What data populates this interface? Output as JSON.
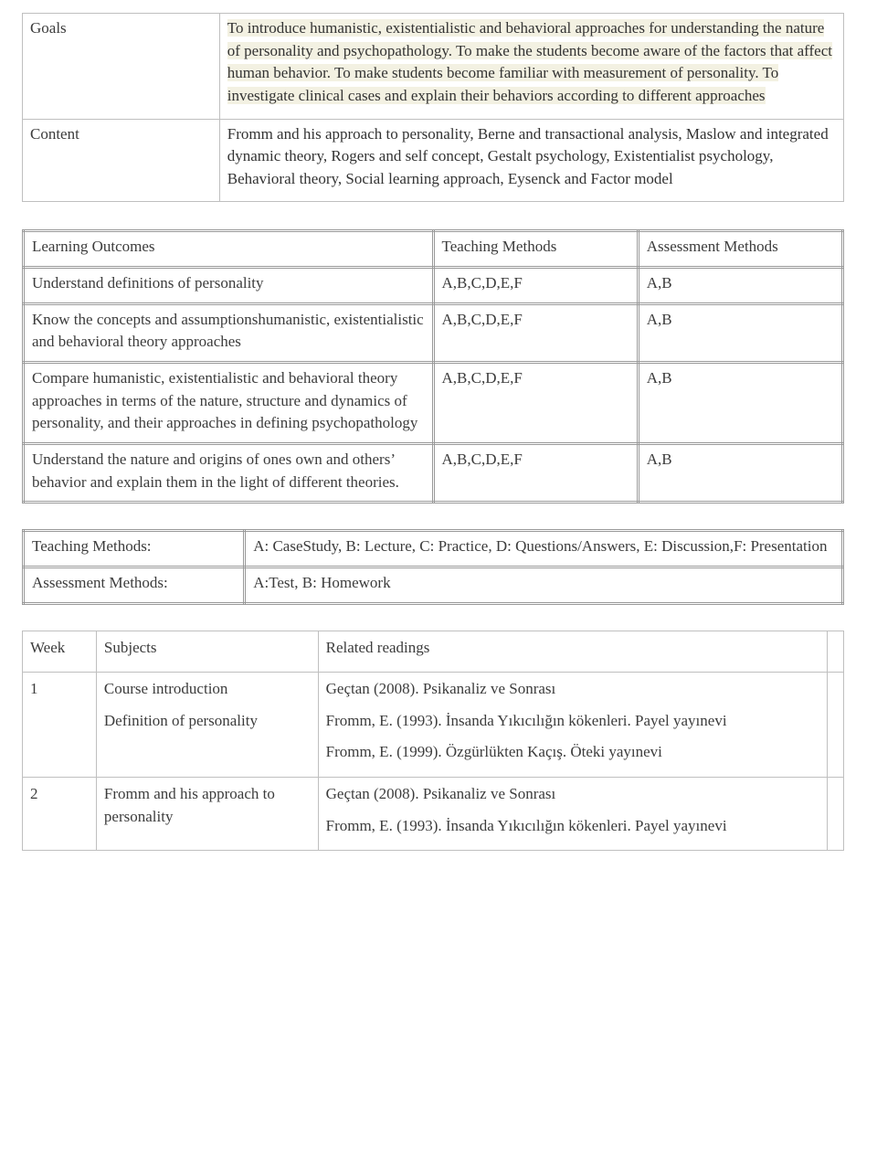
{
  "goalsContent": {
    "label": "Goals",
    "label_color": "#3c3c3c",
    "text_color": "#3c3c3c",
    "highlight_bg": "#f3f1e2",
    "text": "To introduce humanistic, existentialistic and behavioral approaches for understanding  the nature of personality and psychopathology. To make the students become aware of the factors that affect human behavior. To make students become familiar with measurement of personality. To investigate clinical cases and explain their behaviors according to different approaches"
  },
  "contentRow": {
    "label": "Content",
    "text": "Fromm and his approach to personality, Berne and transactional analysis, Maslow and integrated dynamic theory, Rogers and self concept, Gestalt psychology, Existentialist psychology, Behavioral theory, Social learning approach, Eysenck and Factor model"
  },
  "outcomesTable": {
    "headers": [
      "Learning Outcomes",
      "Teaching Methods",
      "Assessment Methods"
    ],
    "rows": [
      {
        "outcome": "Understand definitions of personality",
        "teach": "A,B,C,D,E,F",
        "assess": "A,B"
      },
      {
        "outcome": "Know the concepts and assumptionshumanistic, existentialistic and behavioral theory approaches",
        "teach": "A,B,C,D,E,F",
        "assess": "A,B"
      },
      {
        "outcome": "Compare humanistic, existentialistic and behavioral theory approaches in terms of the nature, structure and dynamics of personality, and their approaches in defining psychopathology",
        "teach": "A,B,C,D,E,F",
        "assess": "A,B"
      },
      {
        "outcome": " Understand the nature and origins of ones own and others’ behavior and explain them in the light of different theories.",
        "teach": "A,B,C,D,E,F",
        "assess": "A,B"
      }
    ]
  },
  "methodsKey": {
    "rows": [
      {
        "label": "Teaching Methods:",
        "value": "A: CaseStudy, B: Lecture, C: Practice, D: Questions/Answers, E: Discussion,F: Presentation"
      },
      {
        "label": "Assessment Methods:",
        "value": "A:Test, B: Homework"
      }
    ]
  },
  "schedule": {
    "headers": [
      "Week",
      "Subjects",
      "Related readings"
    ],
    "rows": [
      {
        "week": "1",
        "subjects": [
          "Course introduction",
          "Definition of personality"
        ],
        "readings": [
          "Geçtan (2008). Psikanaliz ve Sonrası",
          "Fromm, E. (1993). İnsanda Yıkıcılığın kökenleri. Payel yayınevi",
          "Fromm, E. (1999). Özgürlükten Kaçış. Öteki yayınevi"
        ]
      },
      {
        "week": "2",
        "subjects": [
          "Fromm and his approach to personality"
        ],
        "readings": [
          "Geçtan (2008). Psikanaliz ve Sonrası",
          "Fromm, E. (1993). İnsanda Yıkıcılığın kökenleri. Payel yayınevi"
        ]
      }
    ]
  },
  "style": {
    "font_family": "Times New Roman",
    "font_size_pt": 13,
    "text_color": "#3c3c3c",
    "single_border_color": "#bfbfbf",
    "double_border_color": "#999999",
    "background_color": "#ffffff"
  }
}
